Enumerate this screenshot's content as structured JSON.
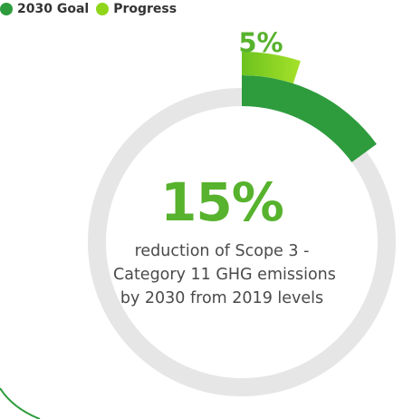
{
  "legend": [
    {
      "label": "2030 Goal",
      "color": "#2e9c3d"
    },
    {
      "label": "Progress",
      "color": "#8fd61a"
    }
  ],
  "chart_data": {
    "type": "pie",
    "series": [
      {
        "name": "2030 Goal",
        "values": [
          15
        ]
      },
      {
        "name": "Progress",
        "values": [
          5
        ]
      }
    ],
    "progress_label": "5%",
    "goal_label": "15%",
    "caption_lines": [
      "reduction of Scope 3 -",
      "Category 11 GHG emissions",
      "by 2030 from 2019 levels"
    ],
    "colors": {
      "goal": "#2e9c3d",
      "progress": "#8fd61a",
      "track": "#e6e6e6",
      "label": "#57b22d"
    }
  }
}
